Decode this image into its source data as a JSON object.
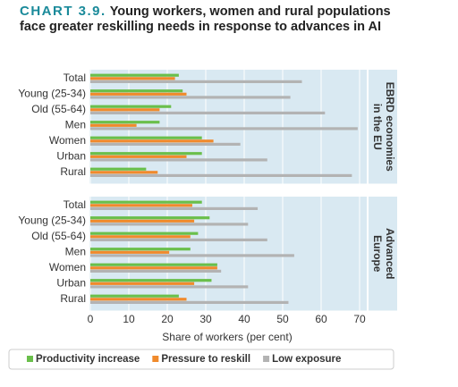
{
  "chart_data": {
    "type": "bar",
    "orientation": "horizontal",
    "label": "CHART 3.9.",
    "title": "Young workers, women and rural populations face greater reskilling needs in response to advances in AI",
    "xlabel": "Share of workers (per cent)",
    "xlim": [
      0,
      70
    ],
    "xticks": [
      0,
      10,
      20,
      30,
      40,
      50,
      60,
      70
    ],
    "grid": true,
    "categories": [
      "Total",
      "Young (25-34)",
      "Old (55-64)",
      "Men",
      "Women",
      "Urban",
      "Rural"
    ],
    "series": [
      {
        "name": "Productivity increase",
        "color": "#6abf4b"
      },
      {
        "name": "Pressure to reskill",
        "color": "#f08a2c"
      },
      {
        "name": "Low exposure",
        "color": "#b3b3b3"
      }
    ],
    "panels": [
      {
        "label": [
          "EBRD economies",
          "in the EU"
        ],
        "values": [
          [
            23,
            24,
            21,
            18,
            29,
            29,
            14.5
          ],
          [
            22,
            25,
            18,
            12,
            32,
            25,
            17.5
          ],
          [
            55,
            52,
            61,
            69.5,
            39,
            46,
            68
          ]
        ]
      },
      {
        "label": [
          "Advanced",
          "Europe"
        ],
        "values": [
          [
            29,
            31,
            28,
            26,
            33,
            31.5,
            23
          ],
          [
            26.5,
            27,
            26,
            20.5,
            33,
            27,
            25
          ],
          [
            43.5,
            41,
            46,
            53,
            34,
            41,
            51.5
          ]
        ]
      }
    ]
  }
}
